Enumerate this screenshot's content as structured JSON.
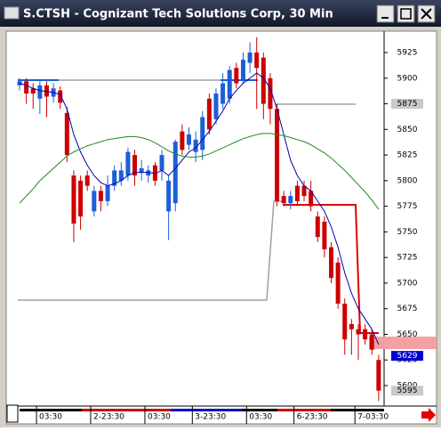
{
  "window": {
    "title": "S.CTSH - Cognizant Tech Solutions Corp, 30 Min"
  },
  "chart_data": {
    "type": "candlestick",
    "categories": [
      null,
      null,
      null,
      "03:30",
      null,
      null,
      null,
      null,
      null,
      null,
      null,
      "2-23:30",
      null,
      null,
      null,
      null,
      null,
      null,
      null,
      "03:30",
      null,
      null,
      null,
      null,
      null,
      null,
      "3-23:30",
      null,
      null,
      null,
      null,
      null,
      null,
      null,
      "03:30",
      null,
      null,
      null,
      null,
      null,
      null,
      "6-23:30",
      null,
      null,
      null,
      null,
      null,
      null,
      null,
      null,
      "7-03:30",
      null,
      null,
      null
    ],
    "open": [
      5893,
      5897,
      5890,
      5880,
      5893,
      5882,
      5888,
      5866,
      5805,
      5800,
      5805,
      5770,
      5790,
      5780,
      5795,
      5800,
      5805,
      5825,
      5808,
      5805,
      5815,
      5810,
      5770,
      5778,
      5848,
      5835,
      5828,
      5830,
      5880,
      5860,
      5875,
      5880,
      5910,
      5898,
      5915,
      5925,
      5920,
      5900,
      5870,
      5785,
      5778,
      5795,
      5795,
      5790,
      5765,
      5760,
      5735,
      5720,
      5680,
      5660,
      5655,
      5655,
      5650,
      5625
    ],
    "high": [
      5900,
      5900,
      5895,
      5897,
      5897,
      5895,
      5892,
      5872,
      5810,
      5805,
      5810,
      5795,
      5795,
      5805,
      5815,
      5818,
      5832,
      5830,
      5820,
      5815,
      5818,
      5830,
      5805,
      5840,
      5855,
      5852,
      5848,
      5868,
      5885,
      5890,
      5905,
      5912,
      5915,
      5925,
      5935,
      5940,
      5925,
      5905,
      5875,
      5790,
      5790,
      5800,
      5800,
      5800,
      5770,
      5765,
      5740,
      5725,
      5685,
      5665,
      5660,
      5660,
      5655,
      5630
    ],
    "low": [
      5888,
      5875,
      5870,
      5865,
      5862,
      5876,
      5870,
      5818,
      5740,
      5752,
      5790,
      5765,
      5770,
      5775,
      5790,
      5795,
      5800,
      5795,
      5800,
      5798,
      5795,
      5800,
      5742,
      5770,
      5825,
      5830,
      5818,
      5820,
      5845,
      5855,
      5870,
      5875,
      5890,
      5895,
      5905,
      5870,
      5860,
      5855,
      5775,
      5775,
      5772,
      5775,
      5780,
      5770,
      5740,
      5725,
      5700,
      5675,
      5630,
      5630,
      5625,
      5640,
      5630,
      5585
    ],
    "close": [
      5897,
      5885,
      5885,
      5893,
      5882,
      5890,
      5876,
      5825,
      5758,
      5765,
      5795,
      5790,
      5780,
      5795,
      5810,
      5810,
      5828,
      5805,
      5812,
      5810,
      5800,
      5825,
      5800,
      5838,
      5830,
      5845,
      5840,
      5862,
      5850,
      5885,
      5895,
      5908,
      5895,
      5918,
      5925,
      5910,
      5875,
      5870,
      5780,
      5778,
      5785,
      5780,
      5785,
      5775,
      5745,
      5733,
      5705,
      5680,
      5645,
      5655,
      5650,
      5645,
      5635,
      5595
    ],
    "up_color": "#1a5fd6",
    "down_color": "#cc0000",
    "series": [
      {
        "color": "#0000b0",
        "values": [
          5895,
          5893,
          5890,
          5888,
          5887,
          5886,
          5884,
          5870,
          5845,
          5828,
          5815,
          5805,
          5798,
          5795,
          5797,
          5800,
          5805,
          5808,
          5808,
          5808,
          5807,
          5810,
          5805,
          5812,
          5820,
          5828,
          5832,
          5840,
          5848,
          5858,
          5868,
          5880,
          5888,
          5895,
          5900,
          5905,
          5900,
          5890,
          5870,
          5845,
          5820,
          5805,
          5795,
          5790,
          5780,
          5770,
          5755,
          5735,
          5710,
          5690,
          5675,
          5665,
          5655,
          5640
        ]
      },
      {
        "color": "#1a8a1a",
        "values": [
          5778,
          5785,
          5792,
          5800,
          5806,
          5812,
          5818,
          5824,
          5828,
          5831,
          5834,
          5836,
          5838,
          5840,
          5841,
          5842,
          5843,
          5843,
          5842,
          5840,
          5837,
          5833,
          5829,
          5826,
          5824,
          5823,
          5823,
          5824,
          5826,
          5829,
          5832,
          5835,
          5838,
          5841,
          5843,
          5845,
          5846,
          5846,
          5845,
          5844,
          5842,
          5840,
          5838,
          5835,
          5831,
          5827,
          5822,
          5816,
          5810,
          5803,
          5796,
          5789,
          5781,
          5772
        ]
      }
    ],
    "ylim": [
      5580,
      5945
    ],
    "yticks": [
      5600,
      5625,
      5650,
      5675,
      5700,
      5725,
      5750,
      5775,
      5800,
      5825,
      5850,
      5875,
      5900,
      5925
    ],
    "price_tags": [
      {
        "value": 5875,
        "fill": "#c8c8c8",
        "text_color": "#000000"
      },
      {
        "value": 5629,
        "fill": "#0000cc",
        "text_color": "#ffffff"
      },
      {
        "value": 5595,
        "fill": "#c8c8c8",
        "text_color": "#000000"
      }
    ]
  }
}
